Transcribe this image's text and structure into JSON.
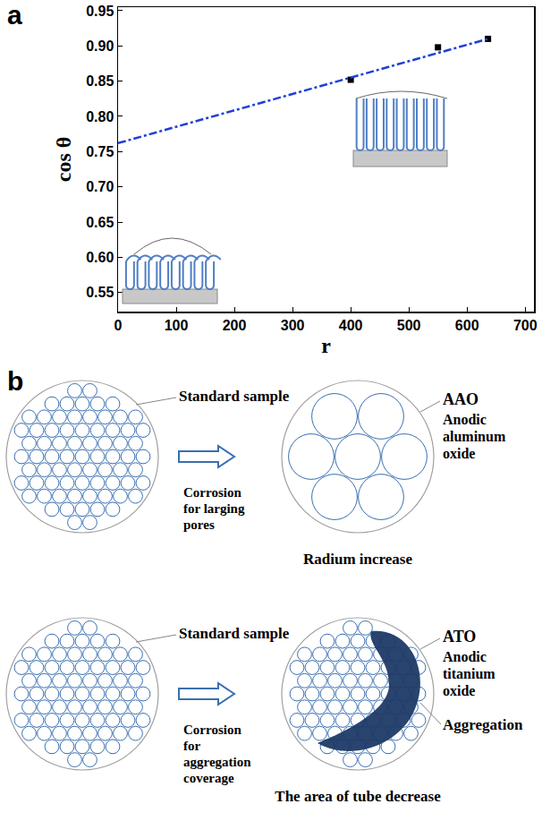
{
  "chart_data": {
    "panel": "a",
    "type": "scatter",
    "xlabel": "r",
    "ylabel": "cos θ",
    "series": [
      {
        "type": "scatter",
        "marker": "square",
        "color": "#000000",
        "x": [
          400,
          550,
          636
        ],
        "values": [
          0.852,
          0.898,
          0.91
        ]
      },
      {
        "type": "line",
        "line_style": "dashdot",
        "color": "#1f3fd8",
        "x": [
          0,
          636
        ],
        "values": [
          0.762,
          0.91
        ]
      }
    ],
    "xlim": [
      0,
      715
    ],
    "xticks": [
      0,
      100,
      200,
      300,
      400,
      500,
      600,
      700
    ],
    "ylim": [
      0.523,
      0.955
    ],
    "yticks": [
      0.55,
      {
        "value": 0.6,
        "label": "0.60"
      },
      0.65,
      {
        "value": 0.7,
        "label": "0.70"
      },
      0.75,
      {
        "value": 0.8,
        "label": "0.80"
      },
      0.85,
      {
        "value": 0.9,
        "label": "0.90"
      },
      0.95
    ],
    "grid": false
  },
  "diagram": {
    "panel": "b",
    "rows": [
      {
        "before": {
          "label": "Standard sample"
        },
        "process": "Corrosion for larging pores",
        "after": {
          "name": "AAO",
          "full_name": "Anodic aluminum oxide",
          "caption": "Radium increase"
        }
      },
      {
        "before": {
          "label": "Standard sample"
        },
        "process": "Corrosion for aggregation coverage",
        "after": {
          "name": "ATO",
          "full_name": "Anodic titanium oxide",
          "marker_label": "Aggregation",
          "caption": "The area of tube decrease"
        }
      }
    ]
  }
}
